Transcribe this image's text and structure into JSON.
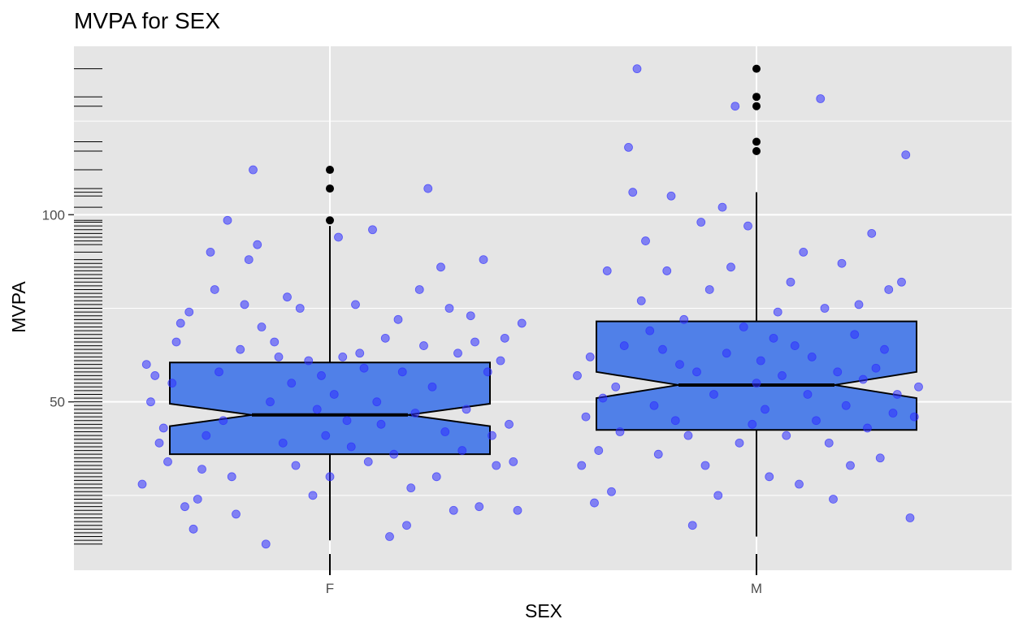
{
  "chart_data": {
    "type": "box",
    "title": "MVPA for SEX",
    "xlabel": "SEX",
    "ylabel": "MVPA",
    "categories": [
      "F",
      "M"
    ],
    "y_ticks": [
      50,
      100
    ],
    "ylim": [
      5,
      145
    ],
    "notched": true,
    "jittered_points": true,
    "rug": "left",
    "grid": true,
    "colors": {
      "panel": "#e5e5e5",
      "grid": "#ffffff",
      "box_fill": "#5080e8",
      "box_border": "#000000",
      "points": "#2d2dff",
      "outliers": "#000000"
    },
    "boxes": [
      {
        "category": "F",
        "q1": 36,
        "median": 46.5,
        "q3": 60.5,
        "notch_low": 43.5,
        "notch_high": 49.5,
        "whisker_low": 13,
        "whisker_high": 97,
        "outliers": [
          98.5,
          107,
          112
        ]
      },
      {
        "category": "M",
        "q1": 42.5,
        "median": 54.5,
        "q3": 71.5,
        "notch_low": 51,
        "notch_high": 58,
        "whisker_low": 14,
        "whisker_high": 106,
        "outliers": [
          117,
          119.5,
          129,
          131.5,
          139
        ]
      }
    ],
    "points": {
      "F": [
        {
          "x": 0.72,
          "y": 60
        },
        {
          "x": 0.74,
          "y": 57
        },
        {
          "x": 0.73,
          "y": 50
        },
        {
          "x": 0.71,
          "y": 28
        },
        {
          "x": 0.75,
          "y": 39
        },
        {
          "x": 0.76,
          "y": 43
        },
        {
          "x": 0.77,
          "y": 34
        },
        {
          "x": 0.78,
          "y": 55
        },
        {
          "x": 0.79,
          "y": 66
        },
        {
          "x": 0.8,
          "y": 71
        },
        {
          "x": 0.82,
          "y": 74
        },
        {
          "x": 0.81,
          "y": 22
        },
        {
          "x": 0.83,
          "y": 16
        },
        {
          "x": 0.84,
          "y": 24
        },
        {
          "x": 0.85,
          "y": 32
        },
        {
          "x": 0.86,
          "y": 41
        },
        {
          "x": 0.87,
          "y": 90
        },
        {
          "x": 0.88,
          "y": 80
        },
        {
          "x": 0.89,
          "y": 58
        },
        {
          "x": 0.9,
          "y": 45
        },
        {
          "x": 0.91,
          "y": 98.5
        },
        {
          "x": 0.92,
          "y": 30
        },
        {
          "x": 0.93,
          "y": 20
        },
        {
          "x": 0.94,
          "y": 64
        },
        {
          "x": 0.95,
          "y": 76
        },
        {
          "x": 0.96,
          "y": 88
        },
        {
          "x": 0.97,
          "y": 112
        },
        {
          "x": 0.98,
          "y": 92
        },
        {
          "x": 0.99,
          "y": 70
        },
        {
          "x": 1.0,
          "y": 12
        },
        {
          "x": 1.01,
          "y": 50
        },
        {
          "x": 1.02,
          "y": 66
        },
        {
          "x": 1.03,
          "y": 62
        },
        {
          "x": 1.04,
          "y": 39
        },
        {
          "x": 1.05,
          "y": 78
        },
        {
          "x": 1.06,
          "y": 55
        },
        {
          "x": 1.07,
          "y": 33
        },
        {
          "x": 1.08,
          "y": 75
        },
        {
          "x": 1.1,
          "y": 61
        },
        {
          "x": 1.11,
          "y": 25
        },
        {
          "x": 1.12,
          "y": 48
        },
        {
          "x": 1.13,
          "y": 57
        },
        {
          "x": 1.14,
          "y": 41
        },
        {
          "x": 1.15,
          "y": 30
        },
        {
          "x": 1.16,
          "y": 52
        },
        {
          "x": 1.17,
          "y": 94
        },
        {
          "x": 1.18,
          "y": 62
        },
        {
          "x": 1.19,
          "y": 45
        },
        {
          "x": 1.2,
          "y": 38
        },
        {
          "x": 1.21,
          "y": 76
        },
        {
          "x": 1.22,
          "y": 63
        },
        {
          "x": 1.23,
          "y": 59
        },
        {
          "x": 1.24,
          "y": 34
        },
        {
          "x": 1.25,
          "y": 96
        },
        {
          "x": 1.26,
          "y": 50
        },
        {
          "x": 1.27,
          "y": 44
        },
        {
          "x": 1.28,
          "y": 67
        },
        {
          "x": 1.29,
          "y": 14
        },
        {
          "x": 1.3,
          "y": 36
        },
        {
          "x": 1.31,
          "y": 72
        },
        {
          "x": 1.32,
          "y": 58
        },
        {
          "x": 1.33,
          "y": 17
        },
        {
          "x": 1.34,
          "y": 27
        },
        {
          "x": 1.35,
          "y": 47
        },
        {
          "x": 1.36,
          "y": 80
        },
        {
          "x": 1.37,
          "y": 65
        },
        {
          "x": 1.38,
          "y": 107
        },
        {
          "x": 1.39,
          "y": 54
        },
        {
          "x": 1.4,
          "y": 30
        },
        {
          "x": 1.41,
          "y": 86
        },
        {
          "x": 1.42,
          "y": 42
        },
        {
          "x": 1.43,
          "y": 75
        },
        {
          "x": 1.44,
          "y": 21
        },
        {
          "x": 1.45,
          "y": 63
        },
        {
          "x": 1.46,
          "y": 37
        },
        {
          "x": 1.47,
          "y": 48
        },
        {
          "x": 1.48,
          "y": 73
        },
        {
          "x": 1.49,
          "y": 66
        },
        {
          "x": 1.5,
          "y": 22
        },
        {
          "x": 1.51,
          "y": 88
        },
        {
          "x": 1.52,
          "y": 58
        },
        {
          "x": 1.53,
          "y": 41
        },
        {
          "x": 1.54,
          "y": 33
        },
        {
          "x": 1.55,
          "y": 61
        },
        {
          "x": 1.56,
          "y": 67
        },
        {
          "x": 1.57,
          "y": 44
        },
        {
          "x": 1.58,
          "y": 34
        },
        {
          "x": 1.59,
          "y": 21
        },
        {
          "x": 1.6,
          "y": 71
        }
      ],
      "M": [
        {
          "x": 0.73,
          "y": 57
        },
        {
          "x": 0.74,
          "y": 33
        },
        {
          "x": 0.75,
          "y": 46
        },
        {
          "x": 0.76,
          "y": 62
        },
        {
          "x": 0.77,
          "y": 23
        },
        {
          "x": 0.78,
          "y": 37
        },
        {
          "x": 0.79,
          "y": 51
        },
        {
          "x": 0.8,
          "y": 85
        },
        {
          "x": 0.81,
          "y": 26
        },
        {
          "x": 0.82,
          "y": 54
        },
        {
          "x": 0.83,
          "y": 42
        },
        {
          "x": 0.84,
          "y": 65
        },
        {
          "x": 0.85,
          "y": 118
        },
        {
          "x": 0.86,
          "y": 106
        },
        {
          "x": 0.87,
          "y": 139
        },
        {
          "x": 0.88,
          "y": 77
        },
        {
          "x": 0.89,
          "y": 93
        },
        {
          "x": 0.9,
          "y": 69
        },
        {
          "x": 0.91,
          "y": 49
        },
        {
          "x": 0.92,
          "y": 36
        },
        {
          "x": 0.93,
          "y": 64
        },
        {
          "x": 0.94,
          "y": 85
        },
        {
          "x": 0.95,
          "y": 105
        },
        {
          "x": 0.96,
          "y": 45
        },
        {
          "x": 0.97,
          "y": 60
        },
        {
          "x": 0.98,
          "y": 72
        },
        {
          "x": 0.99,
          "y": 41
        },
        {
          "x": 1.0,
          "y": 17
        },
        {
          "x": 1.01,
          "y": 58
        },
        {
          "x": 1.02,
          "y": 98
        },
        {
          "x": 1.03,
          "y": 33
        },
        {
          "x": 1.04,
          "y": 80
        },
        {
          "x": 1.05,
          "y": 52
        },
        {
          "x": 1.06,
          "y": 25
        },
        {
          "x": 1.07,
          "y": 102
        },
        {
          "x": 1.08,
          "y": 63
        },
        {
          "x": 1.09,
          "y": 86
        },
        {
          "x": 1.1,
          "y": 129
        },
        {
          "x": 1.11,
          "y": 39
        },
        {
          "x": 1.12,
          "y": 70
        },
        {
          "x": 1.13,
          "y": 97
        },
        {
          "x": 1.14,
          "y": 44
        },
        {
          "x": 1.15,
          "y": 55
        },
        {
          "x": 1.16,
          "y": 61
        },
        {
          "x": 1.17,
          "y": 48
        },
        {
          "x": 1.18,
          "y": 30
        },
        {
          "x": 1.19,
          "y": 67
        },
        {
          "x": 1.2,
          "y": 74
        },
        {
          "x": 1.21,
          "y": 57
        },
        {
          "x": 1.22,
          "y": 41
        },
        {
          "x": 1.23,
          "y": 82
        },
        {
          "x": 1.24,
          "y": 65
        },
        {
          "x": 1.25,
          "y": 28
        },
        {
          "x": 1.26,
          "y": 90
        },
        {
          "x": 1.27,
          "y": 52
        },
        {
          "x": 1.28,
          "y": 62
        },
        {
          "x": 1.29,
          "y": 45
        },
        {
          "x": 1.3,
          "y": 131
        },
        {
          "x": 1.31,
          "y": 75
        },
        {
          "x": 1.32,
          "y": 39
        },
        {
          "x": 1.33,
          "y": 24
        },
        {
          "x": 1.34,
          "y": 58
        },
        {
          "x": 1.35,
          "y": 87
        },
        {
          "x": 1.36,
          "y": 49
        },
        {
          "x": 1.37,
          "y": 33
        },
        {
          "x": 1.38,
          "y": 68
        },
        {
          "x": 1.39,
          "y": 76
        },
        {
          "x": 1.4,
          "y": 56
        },
        {
          "x": 1.41,
          "y": 43
        },
        {
          "x": 1.42,
          "y": 95
        },
        {
          "x": 1.43,
          "y": 59
        },
        {
          "x": 1.44,
          "y": 35
        },
        {
          "x": 1.45,
          "y": 64
        },
        {
          "x": 1.46,
          "y": 80
        },
        {
          "x": 1.47,
          "y": 47
        },
        {
          "x": 1.48,
          "y": 52
        },
        {
          "x": 1.49,
          "y": 82
        },
        {
          "x": 1.5,
          "y": 116
        },
        {
          "x": 1.51,
          "y": 19
        },
        {
          "x": 1.52,
          "y": 46
        },
        {
          "x": 1.53,
          "y": 54
        }
      ]
    },
    "rug_values": [
      139,
      131.5,
      129,
      119.5,
      117,
      112,
      107,
      106,
      105,
      102,
      98.5,
      98,
      97,
      96,
      95,
      94,
      93,
      92,
      90,
      88,
      87,
      86,
      85,
      84,
      83,
      82,
      81,
      80,
      79,
      78,
      77,
      76,
      75,
      74,
      73,
      72,
      71,
      70,
      69,
      68,
      67,
      66,
      65,
      64,
      63,
      62,
      61,
      60,
      59,
      58,
      57,
      56,
      55,
      54,
      53,
      52,
      51,
      50,
      49,
      48,
      47,
      46,
      45,
      44,
      43,
      42,
      41,
      40,
      39,
      38,
      37,
      36,
      35,
      34,
      33,
      32,
      31,
      30,
      29,
      28,
      27,
      26,
      25,
      24,
      23,
      22,
      21,
      20,
      19,
      18,
      17,
      16,
      15,
      14,
      13,
      12
    ]
  }
}
